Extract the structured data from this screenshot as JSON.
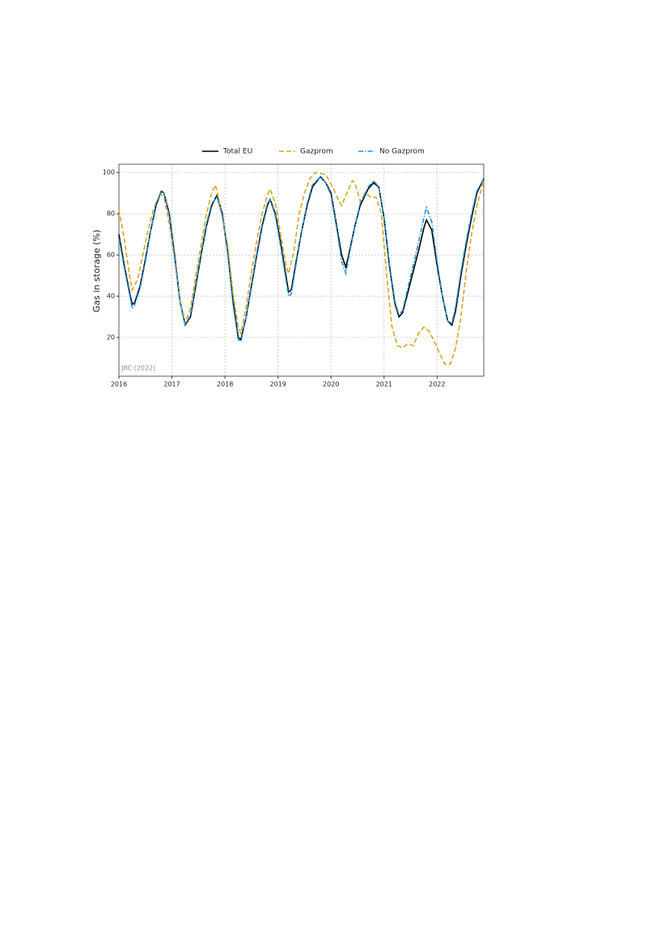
{
  "chart_data": {
    "type": "line",
    "y_label": "Gas in storage (%)",
    "annotation": "JRC (2022)",
    "xlim": [
      2016,
      2022.88
    ],
    "xticks": [
      2016,
      2017,
      2018,
      2019,
      2020,
      2021,
      2022
    ],
    "ylim": [
      1.2,
      104
    ],
    "yticks": [
      20,
      40,
      60,
      80,
      100
    ],
    "grid": true,
    "legend": "top",
    "series": [
      {
        "name": "Total EU",
        "color": "#000000",
        "dash": "solid",
        "x": [
          2016.0,
          2016.1,
          2016.2,
          2016.25,
          2016.3,
          2016.4,
          2016.5,
          2016.6,
          2016.7,
          2016.8,
          2016.85,
          2016.95,
          2017.05,
          2017.15,
          2017.25,
          2017.35,
          2017.45,
          2017.55,
          2017.65,
          2017.75,
          2017.85,
          2017.95,
          2018.05,
          2018.15,
          2018.25,
          2018.3,
          2018.4,
          2018.5,
          2018.6,
          2018.7,
          2018.8,
          2018.85,
          2018.95,
          2019.05,
          2019.15,
          2019.2,
          2019.25,
          2019.35,
          2019.45,
          2019.55,
          2019.65,
          2019.8,
          2019.9,
          2020.0,
          2020.1,
          2020.2,
          2020.28,
          2020.35,
          2020.45,
          2020.55,
          2020.7,
          2020.8,
          2020.9,
          2021.0,
          2021.1,
          2021.2,
          2021.28,
          2021.35,
          2021.45,
          2021.55,
          2021.65,
          2021.75,
          2021.8,
          2021.9,
          2022.0,
          2022.1,
          2022.2,
          2022.28,
          2022.35,
          2022.45,
          2022.55,
          2022.65,
          2022.75,
          2022.88
        ],
        "values": [
          70,
          55,
          42,
          36,
          37,
          45,
          58,
          72,
          84,
          91,
          90,
          80,
          60,
          38,
          26,
          30,
          45,
          60,
          74,
          84,
          89,
          80,
          62,
          38,
          20,
          19,
          30,
          45,
          60,
          74,
          84,
          87,
          80,
          66,
          50,
          42,
          43,
          58,
          72,
          84,
          93,
          98,
          95,
          90,
          75,
          60,
          54,
          62,
          74,
          84,
          92,
          95,
          93,
          78,
          55,
          37,
          30,
          32,
          42,
          52,
          62,
          73,
          77,
          72,
          55,
          40,
          28,
          26,
          33,
          50,
          65,
          78,
          90,
          97
        ]
      },
      {
        "name": "Gazprom",
        "color": "#daa520",
        "dash": "dashed",
        "x": [
          2016.0,
          2016.1,
          2016.2,
          2016.25,
          2016.35,
          2016.45,
          2016.55,
          2016.65,
          2016.78,
          2016.85,
          2016.95,
          2017.05,
          2017.15,
          2017.25,
          2017.35,
          2017.45,
          2017.55,
          2017.65,
          2017.75,
          2017.82,
          2017.9,
          2018.05,
          2018.15,
          2018.25,
          2018.3,
          2018.4,
          2018.5,
          2018.6,
          2018.7,
          2018.8,
          2018.85,
          2018.95,
          2019.05,
          2019.15,
          2019.2,
          2019.3,
          2019.4,
          2019.5,
          2019.6,
          2019.7,
          2019.9,
          2020.05,
          2020.15,
          2020.2,
          2020.3,
          2020.4,
          2020.45,
          2020.55,
          2020.65,
          2020.75,
          2020.85,
          2020.95,
          2021.05,
          2021.15,
          2021.25,
          2021.35,
          2021.45,
          2021.55,
          2021.65,
          2021.75,
          2021.85,
          2021.95,
          2022.05,
          2022.15,
          2022.25,
          2022.35,
          2022.45,
          2022.55,
          2022.65,
          2022.75,
          2022.88
        ],
        "values": [
          82,
          68,
          50,
          43,
          48,
          60,
          72,
          82,
          90,
          88,
          75,
          58,
          38,
          27,
          34,
          50,
          65,
          80,
          90,
          94,
          85,
          65,
          42,
          25,
          22,
          35,
          52,
          67,
          80,
          89,
          92,
          85,
          70,
          55,
          51,
          62,
          80,
          90,
          97,
          100,
          99,
          92,
          86,
          84,
          90,
          96,
          95,
          86,
          90,
          88,
          88,
          80,
          50,
          25,
          16,
          15,
          17,
          16,
          22,
          25,
          23,
          18,
          12,
          7,
          7,
          15,
          30,
          52,
          70,
          84,
          96
        ]
      },
      {
        "name": "No Gazprom",
        "color": "#1f8fe0",
        "dash": "dashdot",
        "x": [
          2016.0,
          2016.1,
          2016.2,
          2016.25,
          2016.3,
          2016.4,
          2016.5,
          2016.6,
          2016.7,
          2016.8,
          2016.85,
          2016.95,
          2017.05,
          2017.15,
          2017.25,
          2017.35,
          2017.45,
          2017.55,
          2017.65,
          2017.75,
          2017.85,
          2017.95,
          2018.05,
          2018.15,
          2018.25,
          2018.3,
          2018.4,
          2018.5,
          2018.6,
          2018.7,
          2018.8,
          2018.85,
          2018.95,
          2019.05,
          2019.15,
          2019.2,
          2019.25,
          2019.35,
          2019.45,
          2019.55,
          2019.65,
          2019.8,
          2019.9,
          2020.0,
          2020.1,
          2020.2,
          2020.28,
          2020.35,
          2020.45,
          2020.55,
          2020.7,
          2020.8,
          2020.9,
          2021.0,
          2021.1,
          2021.2,
          2021.28,
          2021.35,
          2021.45,
          2021.55,
          2021.65,
          2021.75,
          2021.8,
          2021.9,
          2022.0,
          2022.1,
          2022.2,
          2022.28,
          2022.35,
          2022.45,
          2022.55,
          2022.65,
          2022.75,
          2022.88
        ],
        "values": [
          68,
          54,
          41,
          34,
          36,
          44,
          57,
          72,
          85,
          91,
          90,
          79,
          59,
          37,
          26,
          31,
          46,
          61,
          75,
          85,
          88,
          79,
          61,
          36,
          19,
          18,
          30,
          46,
          61,
          75,
          85,
          87,
          79,
          64,
          48,
          40,
          41,
          57,
          72,
          85,
          94,
          98,
          95,
          89,
          74,
          57,
          51,
          61,
          74,
          85,
          93,
          96,
          93,
          78,
          56,
          38,
          31,
          33,
          44,
          55,
          66,
          78,
          83,
          76,
          57,
          40,
          28,
          27,
          35,
          52,
          67,
          80,
          91,
          97
        ]
      }
    ]
  }
}
